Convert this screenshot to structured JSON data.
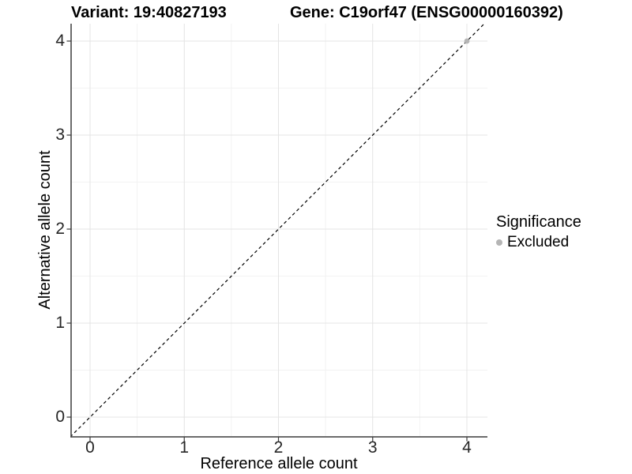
{
  "header": {
    "variant_title": "Variant: 19:40827193",
    "gene_title": "Gene: C19orf47 (ENSG00000160392)"
  },
  "chart_data": {
    "type": "scatter",
    "title_left": "Variant: 19:40827193",
    "title_right": "Gene: C19orf47 (ENSG00000160392)",
    "xlabel": "Reference allele count",
    "ylabel": "Alternative allele count",
    "xlim": [
      -0.2,
      4.2
    ],
    "ylim": [
      -0.2,
      4.2
    ],
    "x_ticks": [
      0,
      1,
      2,
      3,
      4
    ],
    "y_ticks": [
      0,
      1,
      2,
      3,
      4
    ],
    "x_minor_ticks": [
      0.5,
      1.5,
      2.5,
      3.5
    ],
    "y_minor_ticks": [
      0.5,
      1.5,
      2.5,
      3.5
    ],
    "grid": "major+minor",
    "reference_line": {
      "kind": "identity",
      "slope": 1,
      "intercept": 0,
      "style": "dashed",
      "color": "#000000"
    },
    "series": [
      {
        "name": "Excluded",
        "color": "#b5b5b5",
        "points": [
          {
            "x": 4,
            "y": 4
          }
        ]
      }
    ],
    "legend": {
      "title": "Significance",
      "position": "right",
      "entries": [
        {
          "label": "Excluded",
          "color": "#b5b5b5"
        }
      ]
    },
    "style": {
      "grid_major": "#e4e4e4",
      "grid_minor": "#f2f2f2",
      "axis_line": "#3c3c3c",
      "tick_color": "#3c3c3c",
      "point_color": "#b5b5b5",
      "dash_color": "#000000",
      "background": "#ffffff"
    }
  }
}
